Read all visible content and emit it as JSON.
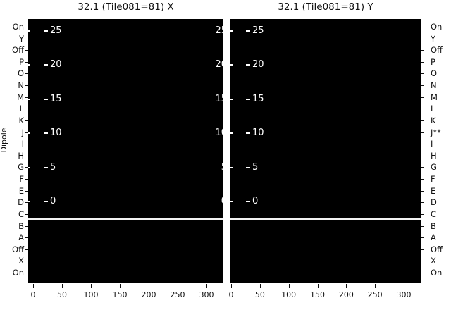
{
  "figure": {
    "titles": {
      "left": "32.1 (Tile081=81) X",
      "right": "32.1 (Tile081=81) Y"
    },
    "y_axis_label": "Dipole"
  },
  "dipole_labels_left": [
    "On",
    "Y",
    "Off",
    "P",
    "O",
    "N",
    "M",
    "L",
    "K",
    "J",
    "I",
    "H",
    "G",
    "F",
    "E",
    "D",
    "C",
    "B",
    "A",
    "Off",
    "X",
    "On"
  ],
  "dipole_labels_right": [
    "On",
    "Y",
    "Off",
    "P",
    "O",
    "N",
    "M",
    "L",
    "K",
    "J**",
    "I",
    "H",
    "G",
    "F",
    "E",
    "D",
    "C",
    "B",
    "A",
    "Off",
    "X",
    "On"
  ],
  "inner_y_tick_labels": [
    "25",
    "20",
    "15",
    "10",
    "5",
    "0"
  ],
  "x_tick_labels": [
    "0",
    "50",
    "100",
    "150",
    "200",
    "250",
    "300"
  ],
  "colors": {
    "panel_background": "#000000",
    "inner_tick_text": "#ffffff",
    "outer_text": "#111111",
    "separator_line": "#f2f2f2",
    "page_background": "#ffffff"
  },
  "chart_data": {
    "type": "heatmap",
    "title": [
      "32.1 (Tile081=81) X",
      "32.1 (Tile081=81) Y"
    ],
    "ylabel": "Dipole",
    "panels": [
      {
        "title": "32.1 (Tile081=81) X",
        "x_ticks": [
          0,
          50,
          100,
          150,
          200,
          250,
          300
        ],
        "x_range": [
          0,
          330
        ],
        "inner_y_ticks": [
          0,
          5,
          10,
          15,
          20,
          25
        ],
        "inner_y_ticks_shown_on": "both-edges (right edge labels clipped)",
        "row_labels_side": "left",
        "row_labels": [
          "On",
          "Y",
          "Off",
          "P",
          "O",
          "N",
          "M",
          "L",
          "K",
          "J",
          "I",
          "H",
          "G",
          "F",
          "E",
          "D",
          "C",
          "B",
          "A",
          "Off",
          "X",
          "On"
        ],
        "values": "uniformly black (all cells at colormap minimum, no visible signal)"
      },
      {
        "title": "32.1 (Tile081=81) Y",
        "x_ticks": [
          0,
          50,
          100,
          150,
          200,
          250,
          300
        ],
        "x_range": [
          0,
          330
        ],
        "inner_y_ticks": [
          0,
          5,
          10,
          15,
          20,
          25
        ],
        "inner_y_ticks_shown_on": "left-edge",
        "row_labels_side": "right",
        "row_labels": [
          "On",
          "Y",
          "Off",
          "P",
          "O",
          "N",
          "M",
          "L",
          "K",
          "J**",
          "I",
          "H",
          "G",
          "F",
          "E",
          "D",
          "C",
          "B",
          "A",
          "Off",
          "X",
          "On"
        ],
        "values": "uniformly black (all cells at colormap minimum, no visible signal)"
      }
    ],
    "annotations": [
      "white horizontal separator line across both panels between rows C and B"
    ],
    "grid": false,
    "legend": null
  }
}
